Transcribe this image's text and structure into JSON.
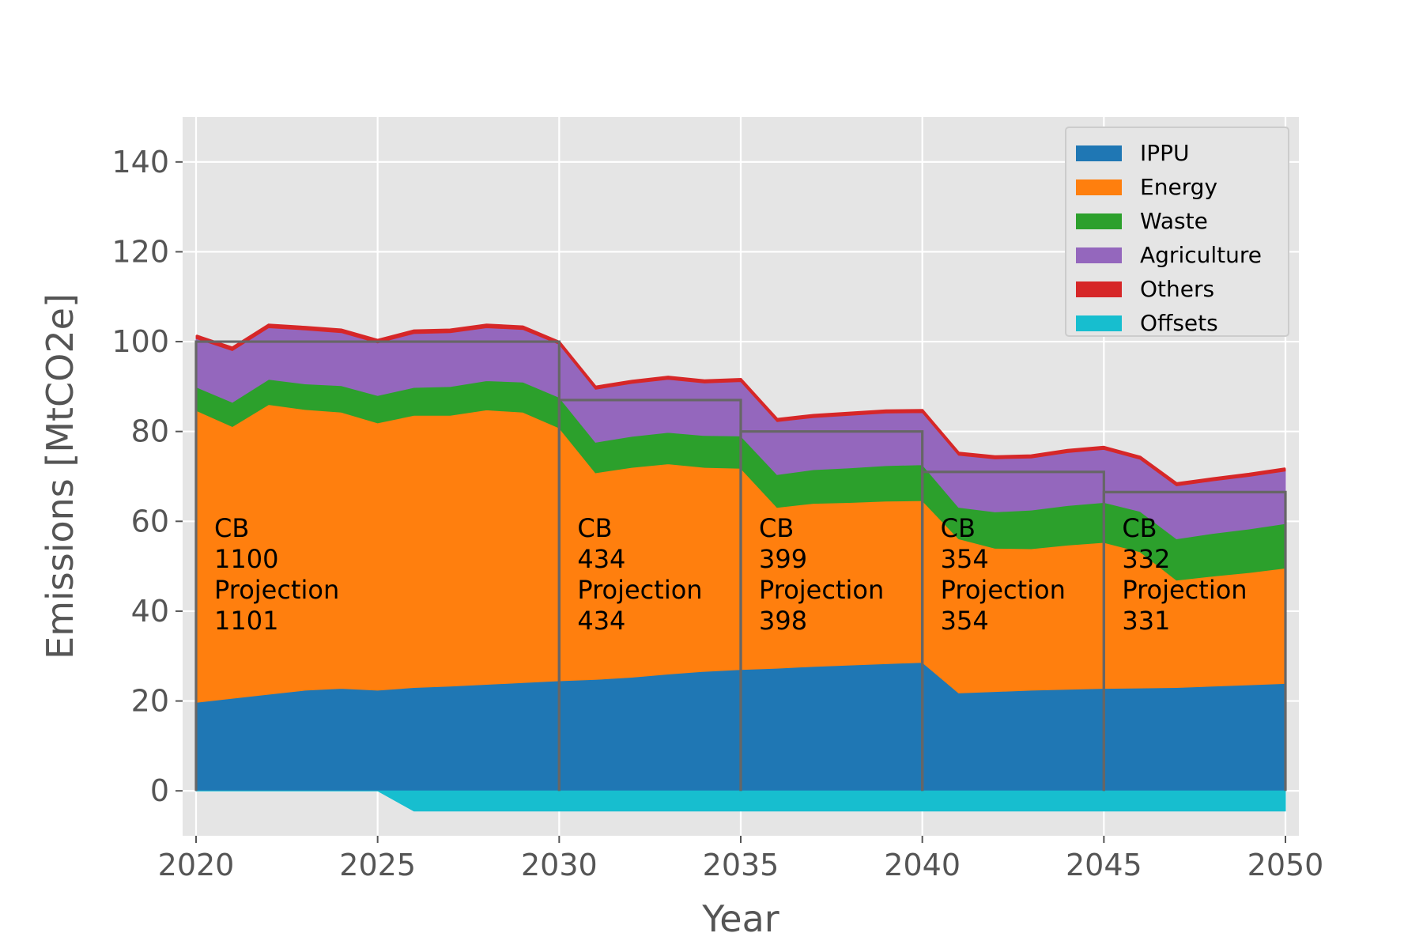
{
  "chart_data": {
    "type": "area",
    "title": "",
    "xlabel": "Year",
    "ylabel": "Emissions [MtCO2e]",
    "xlim": [
      2020,
      2050
    ],
    "ylim": [
      -10,
      150
    ],
    "x_ticks": [
      2020,
      2025,
      2030,
      2035,
      2040,
      2045,
      2050
    ],
    "y_ticks": [
      0,
      20,
      40,
      60,
      80,
      100,
      120,
      140
    ],
    "grid": true,
    "legend_position": "top-right",
    "x": [
      2020,
      2021,
      2022,
      2023,
      2024,
      2025,
      2026,
      2027,
      2028,
      2029,
      2030,
      2031,
      2032,
      2033,
      2034,
      2035,
      2036,
      2037,
      2038,
      2039,
      2040,
      2041,
      2042,
      2043,
      2044,
      2045,
      2046,
      2047,
      2048,
      2049,
      2050
    ],
    "series": [
      {
        "name": "IPPU",
        "color": "#1f77b4",
        "values": [
          19.7,
          20.6,
          21.5,
          22.4,
          22.8,
          22.4,
          23.0,
          23.3,
          23.7,
          24.1,
          24.5,
          24.8,
          25.3,
          26.0,
          26.6,
          27.0,
          27.3,
          27.7,
          28.0,
          28.3,
          28.6,
          21.8,
          22.1,
          22.4,
          22.6,
          22.8,
          22.9,
          23.0,
          23.3,
          23.6,
          23.9
        ]
      },
      {
        "name": "Energy",
        "color": "#ff7f0e",
        "values": [
          65.0,
          60.5,
          64.5,
          62.5,
          61.5,
          59.5,
          60.6,
          60.3,
          61.1,
          60.2,
          56.3,
          46.0,
          46.7,
          46.8,
          45.4,
          44.8,
          35.8,
          36.3,
          36.2,
          36.2,
          36.0,
          34.3,
          31.9,
          31.5,
          32.1,
          32.5,
          30.3,
          23.9,
          24.5,
          25.0,
          25.7
        ]
      },
      {
        "name": "Waste",
        "color": "#2ca02c",
        "values": [
          5.2,
          5.4,
          5.6,
          5.7,
          5.9,
          6.1,
          6.2,
          6.4,
          6.5,
          6.7,
          6.8,
          6.8,
          6.9,
          7.0,
          7.1,
          7.2,
          7.3,
          7.5,
          7.7,
          7.9,
          8.0,
          7.0,
          8.1,
          8.6,
          8.8,
          8.9,
          9.0,
          9.2,
          9.5,
          9.7,
          9.9
        ]
      },
      {
        "name": "Agriculture",
        "color": "#9467bd",
        "values": [
          10.8,
          11.5,
          11.5,
          12.0,
          11.8,
          11.7,
          12.0,
          12.0,
          11.8,
          11.7,
          11.8,
          11.8,
          11.8,
          11.8,
          11.7,
          12.1,
          11.8,
          11.6,
          11.7,
          11.7,
          11.6,
          11.6,
          11.8,
          11.6,
          11.8,
          11.8,
          11.6,
          11.8,
          11.7,
          11.7,
          11.7
        ]
      },
      {
        "name": "Others",
        "color": "#d62728",
        "values": [
          0.6,
          0.6,
          0.6,
          0.6,
          0.6,
          0.6,
          0.6,
          0.6,
          0.6,
          0.6,
          0.5,
          0.5,
          0.5,
          0.5,
          0.5,
          0.5,
          0.5,
          0.5,
          0.5,
          0.5,
          0.5,
          0.5,
          0.5,
          0.5,
          0.5,
          0.5,
          0.5,
          0.5,
          0.5,
          0.5,
          0.5
        ]
      },
      {
        "name": "Offsets",
        "color": "#17becf",
        "values": [
          0,
          0,
          0,
          0,
          0,
          0,
          -4.5,
          -4.5,
          -4.5,
          -4.5,
          -4.5,
          -4.5,
          -4.5,
          -4.5,
          -4.5,
          -4.5,
          -4.5,
          -4.5,
          -4.5,
          -4.5,
          -4.5,
          -4.5,
          -4.5,
          -4.5,
          -4.5,
          -4.5,
          -4.5,
          -4.5,
          -4.5,
          -4.5,
          -4.5
        ]
      }
    ],
    "carbon_budgets": [
      {
        "start": 2020,
        "end": 2030,
        "level": 100.0,
        "cb": "1100",
        "projection": "1101"
      },
      {
        "start": 2030,
        "end": 2035,
        "level": 87.0,
        "cb": "434",
        "projection": "434"
      },
      {
        "start": 2035,
        "end": 2040,
        "level": 80.0,
        "cb": "399",
        "projection": "398"
      },
      {
        "start": 2040,
        "end": 2045,
        "level": 71.0,
        "cb": "354",
        "projection": "354"
      },
      {
        "start": 2045,
        "end": 2050,
        "level": 66.5,
        "cb": "332",
        "projection": "331"
      }
    ],
    "annotation_labels": {
      "cb": "CB",
      "projection": "Projection"
    },
    "budget_color": "#666666",
    "total_line_color": "#d62728"
  }
}
